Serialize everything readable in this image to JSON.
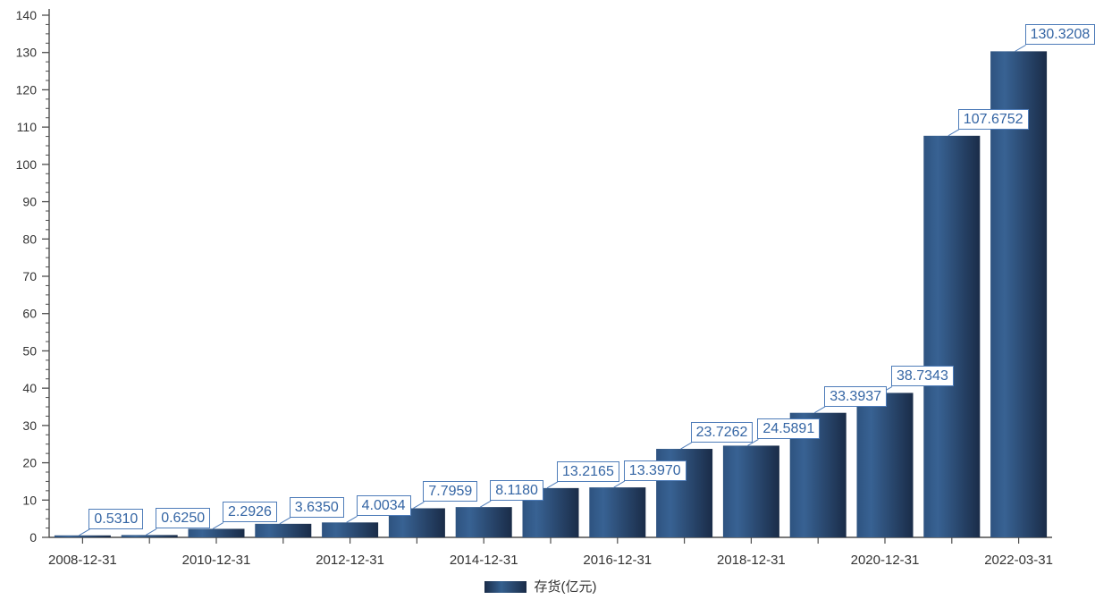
{
  "chart_data": {
    "type": "bar",
    "values": [
      0.531,
      0.625,
      2.2926,
      3.635,
      4.0034,
      7.7959,
      8.118,
      13.2165,
      13.397,
      23.7262,
      24.5891,
      33.3937,
      38.7343,
      107.6752,
      130.3208
    ],
    "data_labels": [
      "0.5310",
      "0.6250",
      "2.2926",
      "3.6350",
      "4.0034",
      "7.7959",
      "8.1180",
      "13.2165",
      "13.3970",
      "23.7262",
      "24.5891",
      "33.3937",
      "38.7343",
      "107.6752",
      "130.3208"
    ],
    "x_tick_labels": [
      "2008-12-31",
      "2010-12-31",
      "2012-12-31",
      "2014-12-31",
      "2016-12-31",
      "2018-12-31",
      "2020-12-31",
      "2022-03-31"
    ],
    "x_label_every": 2,
    "y_ticks": [
      0,
      10,
      20,
      30,
      40,
      50,
      60,
      70,
      80,
      90,
      100,
      110,
      120,
      130,
      140
    ],
    "y_minor_step": 2.5,
    "ylim": [
      0,
      140
    ],
    "grid": false,
    "legend": {
      "label": "存货(亿元)",
      "position": "bottom"
    },
    "colors": {
      "bar_gradient_start": "#2E5380",
      "bar_gradient_mid": "#386293",
      "bar_gradient_end": "#1A2C48",
      "callout_border": "#4E7CB9",
      "callout_text": "#3465A4",
      "axis_line": "#4D4D4D",
      "tick_text": "#333333"
    }
  }
}
